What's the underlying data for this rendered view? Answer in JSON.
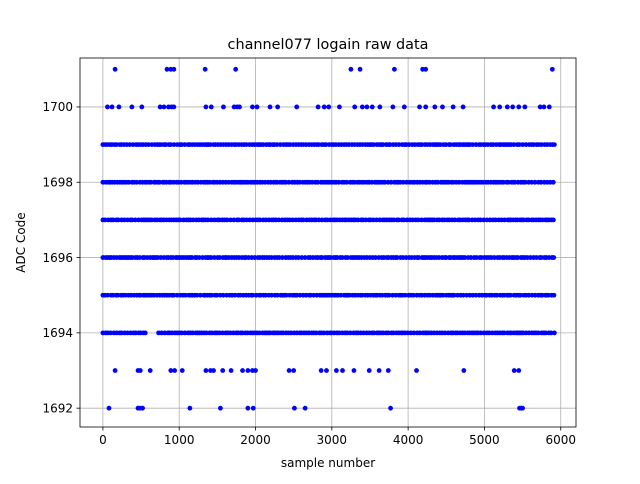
{
  "chart_data": {
    "type": "scatter",
    "title": "channel077 logain raw data",
    "xlabel": "sample number",
    "ylabel": "ADC Code",
    "xlim": [
      -300,
      6200
    ],
    "ylim": [
      1691.5,
      1701.3
    ],
    "xticks": [
      0,
      1000,
      2000,
      3000,
      4000,
      5000,
      6000
    ],
    "yticks": [
      1692,
      1694,
      1696,
      1698,
      1700
    ],
    "grid": true,
    "marker_color": "#0000ff",
    "series": [
      {
        "dense_levels": [
          {
            "y": 1694,
            "x_ranges": [
              [
                0,
                560
              ],
              [
                730,
                5920
              ]
            ]
          },
          {
            "y": 1695,
            "x_ranges": [
              [
                0,
                5920
              ]
            ]
          },
          {
            "y": 1696,
            "x_ranges": [
              [
                0,
                5920
              ]
            ]
          },
          {
            "y": 1697,
            "x_ranges": [
              [
                0,
                5920
              ]
            ]
          },
          {
            "y": 1698,
            "x_ranges": [
              [
                0,
                5920
              ]
            ]
          },
          {
            "y": 1699,
            "x_ranges": [
              [
                0,
                5920
              ]
            ]
          }
        ],
        "points": [
          {
            "x": 80,
            "y": 1692
          },
          {
            "x": 460,
            "y": 1692
          },
          {
            "x": 490,
            "y": 1692
          },
          {
            "x": 520,
            "y": 1692
          },
          {
            "x": 1140,
            "y": 1692
          },
          {
            "x": 1540,
            "y": 1692
          },
          {
            "x": 1900,
            "y": 1692
          },
          {
            "x": 1970,
            "y": 1692
          },
          {
            "x": 2510,
            "y": 1692
          },
          {
            "x": 2650,
            "y": 1692
          },
          {
            "x": 3770,
            "y": 1692
          },
          {
            "x": 5460,
            "y": 1692
          },
          {
            "x": 5480,
            "y": 1692
          },
          {
            "x": 5500,
            "y": 1692
          },
          {
            "x": 160,
            "y": 1693
          },
          {
            "x": 460,
            "y": 1693
          },
          {
            "x": 490,
            "y": 1693
          },
          {
            "x": 620,
            "y": 1693
          },
          {
            "x": 890,
            "y": 1693
          },
          {
            "x": 940,
            "y": 1693
          },
          {
            "x": 1040,
            "y": 1693
          },
          {
            "x": 1350,
            "y": 1693
          },
          {
            "x": 1410,
            "y": 1693
          },
          {
            "x": 1450,
            "y": 1693
          },
          {
            "x": 1570,
            "y": 1693
          },
          {
            "x": 1680,
            "y": 1693
          },
          {
            "x": 1830,
            "y": 1693
          },
          {
            "x": 1900,
            "y": 1693
          },
          {
            "x": 1960,
            "y": 1693
          },
          {
            "x": 2000,
            "y": 1693
          },
          {
            "x": 2440,
            "y": 1693
          },
          {
            "x": 2500,
            "y": 1693
          },
          {
            "x": 2860,
            "y": 1693
          },
          {
            "x": 2930,
            "y": 1693
          },
          {
            "x": 3060,
            "y": 1693
          },
          {
            "x": 3140,
            "y": 1693
          },
          {
            "x": 3290,
            "y": 1693
          },
          {
            "x": 3490,
            "y": 1693
          },
          {
            "x": 3620,
            "y": 1693
          },
          {
            "x": 3740,
            "y": 1693
          },
          {
            "x": 4110,
            "y": 1693
          },
          {
            "x": 4730,
            "y": 1693
          },
          {
            "x": 5390,
            "y": 1693
          },
          {
            "x": 5450,
            "y": 1693
          },
          {
            "x": 60,
            "y": 1700
          },
          {
            "x": 120,
            "y": 1700
          },
          {
            "x": 210,
            "y": 1700
          },
          {
            "x": 380,
            "y": 1700
          },
          {
            "x": 510,
            "y": 1700
          },
          {
            "x": 750,
            "y": 1700
          },
          {
            "x": 800,
            "y": 1700
          },
          {
            "x": 860,
            "y": 1700
          },
          {
            "x": 900,
            "y": 1700
          },
          {
            "x": 930,
            "y": 1700
          },
          {
            "x": 1350,
            "y": 1700
          },
          {
            "x": 1420,
            "y": 1700
          },
          {
            "x": 1580,
            "y": 1700
          },
          {
            "x": 1720,
            "y": 1700
          },
          {
            "x": 1760,
            "y": 1700
          },
          {
            "x": 1790,
            "y": 1700
          },
          {
            "x": 1960,
            "y": 1700
          },
          {
            "x": 2020,
            "y": 1700
          },
          {
            "x": 2190,
            "y": 1700
          },
          {
            "x": 2290,
            "y": 1700
          },
          {
            "x": 2540,
            "y": 1700
          },
          {
            "x": 2820,
            "y": 1700
          },
          {
            "x": 2900,
            "y": 1700
          },
          {
            "x": 2960,
            "y": 1700
          },
          {
            "x": 3100,
            "y": 1700
          },
          {
            "x": 3300,
            "y": 1700
          },
          {
            "x": 3400,
            "y": 1700
          },
          {
            "x": 3460,
            "y": 1700
          },
          {
            "x": 3530,
            "y": 1700
          },
          {
            "x": 3630,
            "y": 1700
          },
          {
            "x": 3800,
            "y": 1700
          },
          {
            "x": 3950,
            "y": 1700
          },
          {
            "x": 4150,
            "y": 1700
          },
          {
            "x": 4230,
            "y": 1700
          },
          {
            "x": 4350,
            "y": 1700
          },
          {
            "x": 4450,
            "y": 1700
          },
          {
            "x": 4590,
            "y": 1700
          },
          {
            "x": 4720,
            "y": 1700
          },
          {
            "x": 5120,
            "y": 1700
          },
          {
            "x": 5200,
            "y": 1700
          },
          {
            "x": 5300,
            "y": 1700
          },
          {
            "x": 5370,
            "y": 1700
          },
          {
            "x": 5450,
            "y": 1700
          },
          {
            "x": 5530,
            "y": 1700
          },
          {
            "x": 5730,
            "y": 1700
          },
          {
            "x": 5780,
            "y": 1700
          },
          {
            "x": 5850,
            "y": 1700
          },
          {
            "x": 160,
            "y": 1701
          },
          {
            "x": 840,
            "y": 1701
          },
          {
            "x": 890,
            "y": 1701
          },
          {
            "x": 930,
            "y": 1701
          },
          {
            "x": 1340,
            "y": 1701
          },
          {
            "x": 1740,
            "y": 1701
          },
          {
            "x": 3250,
            "y": 1701
          },
          {
            "x": 3370,
            "y": 1701
          },
          {
            "x": 3820,
            "y": 1701
          },
          {
            "x": 4190,
            "y": 1701
          },
          {
            "x": 4230,
            "y": 1701
          },
          {
            "x": 5890,
            "y": 1701
          }
        ]
      }
    ]
  }
}
